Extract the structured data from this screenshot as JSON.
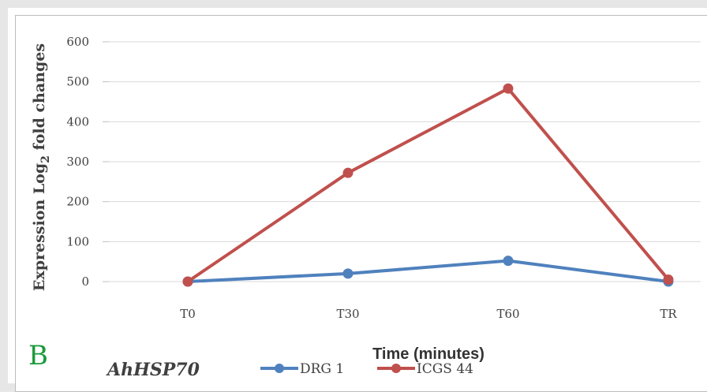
{
  "chart_data": {
    "type": "line",
    "categories": [
      "T0",
      "T30",
      "T60",
      "TR"
    ],
    "series": [
      {
        "name": "DRG 1",
        "values": [
          0,
          20,
          52,
          0
        ],
        "color": "#4f81bd"
      },
      {
        "name": "ICGS 44",
        "values": [
          0,
          272,
          483,
          5
        ],
        "color": "#c0504d"
      }
    ],
    "xlabel": "Time (minutes)",
    "ylabel": {
      "prefix": "Expression Log",
      "subscript": "2",
      "suffix": " fold changes"
    },
    "ylim": [
      0,
      600
    ],
    "yticks": [
      0,
      100,
      200,
      300,
      400,
      500,
      600
    ],
    "grid": true,
    "legend_position": "bottom"
  },
  "panel_label": "B",
  "gene_label": "AhHSP70"
}
